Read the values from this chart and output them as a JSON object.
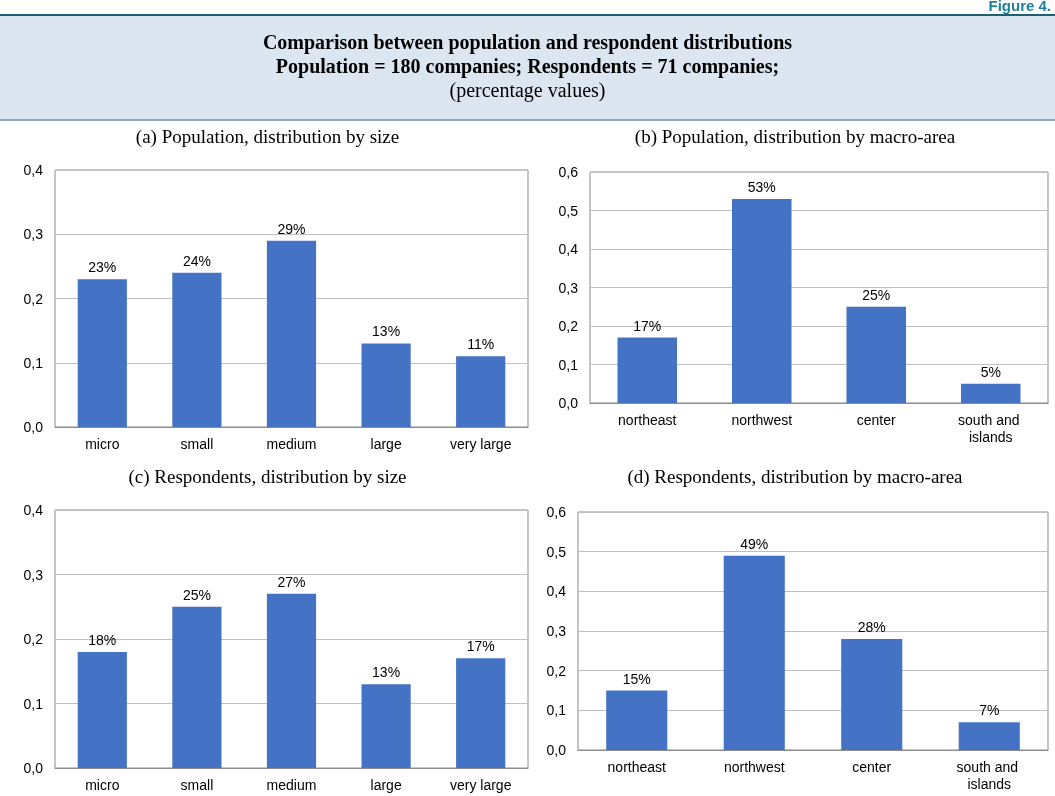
{
  "chart_data": [
    {
      "type": "other",
      "title": "Comparison between population and respondent distributions",
      "subtitle": "Population = 180 companies; Respondents = 71 companies;",
      "annotations": [
        "(percentage values)",
        "Figure 4."
      ]
    },
    {
      "type": "bar",
      "title": "(a) Population, distribution by size",
      "categories": [
        "micro",
        "small",
        "medium",
        "large",
        "very large"
      ],
      "values": [
        0.23,
        0.24,
        0.29,
        0.13,
        0.11
      ],
      "value_labels": [
        "23%",
        "24%",
        "29%",
        "13%",
        "11%"
      ],
      "color": "#4472c4",
      "ylim": [
        0,
        0.4
      ],
      "yticks": [
        {
          "value": 0,
          "label": "0,0"
        },
        {
          "value": 0.1,
          "label": "0,1"
        },
        {
          "value": 0.2,
          "label": "0,2"
        },
        {
          "value": 0.3,
          "label": "0,3"
        },
        {
          "value": 0.4,
          "label": "0,4"
        }
      ],
      "grid": "y"
    },
    {
      "type": "bar",
      "title": "(b) Population, distribution by macro-area",
      "categories": [
        "northeast",
        "northwest",
        "center",
        "south and islands"
      ],
      "values": [
        0.17,
        0.53,
        0.25,
        0.05
      ],
      "value_labels": [
        "17%",
        "53%",
        "25%",
        "5%"
      ],
      "color": "#4472c4",
      "ylim": [
        0,
        0.6
      ],
      "yticks": [
        {
          "value": 0,
          "label": "0,0"
        },
        {
          "value": 0.1,
          "label": "0,1"
        },
        {
          "value": 0.2,
          "label": "0,2"
        },
        {
          "value": 0.3,
          "label": "0,3"
        },
        {
          "value": 0.4,
          "label": "0,4"
        },
        {
          "value": 0.5,
          "label": "0,5"
        },
        {
          "value": 0.6,
          "label": "0,6"
        }
      ],
      "grid": "y"
    },
    {
      "type": "bar",
      "title": "(c) Respondents, distribution by size",
      "categories": [
        "micro",
        "small",
        "medium",
        "large",
        "very large"
      ],
      "values": [
        0.18,
        0.25,
        0.27,
        0.13,
        0.17
      ],
      "value_labels": [
        "18%",
        "25%",
        "27%",
        "13%",
        "17%"
      ],
      "color": "#4472c4",
      "ylim": [
        0,
        0.4
      ],
      "yticks": [
        {
          "value": 0,
          "label": "0,0"
        },
        {
          "value": 0.1,
          "label": "0,1"
        },
        {
          "value": 0.2,
          "label": "0,2"
        },
        {
          "value": 0.3,
          "label": "0,3"
        },
        {
          "value": 0.4,
          "label": "0,4"
        }
      ],
      "grid": "y"
    },
    {
      "type": "bar",
      "title": "(d) Respondents, distribution by macro-area",
      "categories": [
        "northeast",
        "northwest",
        "center",
        "south and islands"
      ],
      "values": [
        0.15,
        0.49,
        0.28,
        0.07
      ],
      "value_labels": [
        "15%",
        "49%",
        "28%",
        "7%"
      ],
      "color": "#4472c4",
      "ylim": [
        0,
        0.6
      ],
      "yticks": [
        {
          "value": 0,
          "label": "0,0"
        },
        {
          "value": 0.1,
          "label": "0,1"
        },
        {
          "value": 0.2,
          "label": "0,2"
        },
        {
          "value": 0.3,
          "label": "0,3"
        },
        {
          "value": 0.4,
          "label": "0,4"
        },
        {
          "value": 0.5,
          "label": "0,5"
        },
        {
          "value": 0.6,
          "label": "0,6"
        }
      ],
      "grid": "y"
    }
  ]
}
